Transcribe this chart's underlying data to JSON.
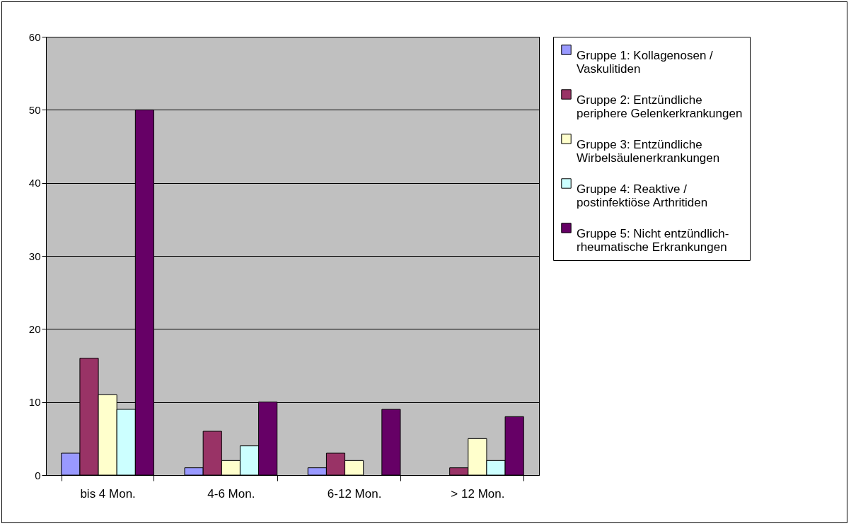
{
  "chart_data": {
    "type": "bar",
    "categories": [
      "bis 4 Mon.",
      "4-6 Mon.",
      "6-12 Mon.",
      "> 12 Mon."
    ],
    "series": [
      {
        "name": "Gruppe 1: Kollagenosen / Vaskulitiden",
        "color": "#9999ff",
        "values": [
          3,
          1,
          1,
          0
        ]
      },
      {
        "name": "Gruppe 2: Entzündliche periphere Gelenkerkrankungen",
        "color": "#993366",
        "values": [
          16,
          6,
          3,
          1
        ]
      },
      {
        "name": "Gruppe 3: Entzündliche Wirbelsäulenerkrankungen",
        "color": "#ffffcc",
        "values": [
          11,
          2,
          2,
          5
        ]
      },
      {
        "name": "Gruppe 4: Reaktive / postinfektiöse Arthritiden",
        "color": "#ccffff",
        "values": [
          9,
          4,
          0,
          2
        ]
      },
      {
        "name": "Gruppe 5: Nicht entzündlich-rheumatische Erkrankungen",
        "color": "#660066",
        "values": [
          50,
          10,
          9,
          8
        ]
      }
    ],
    "ylim": [
      0,
      60
    ],
    "yticks": [
      0,
      10,
      20,
      30,
      40,
      50,
      60
    ],
    "grid": "y",
    "legend": "right"
  }
}
